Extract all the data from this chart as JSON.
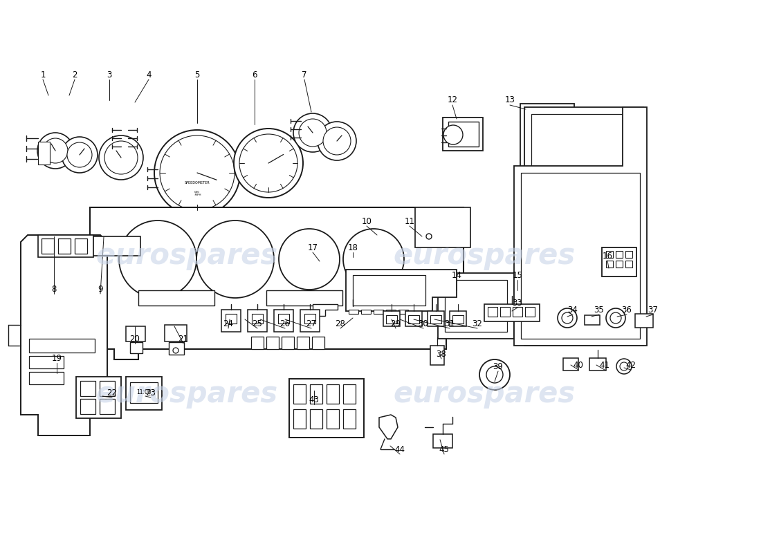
{
  "bg_color": "#ffffff",
  "line_color": "#1a1a1a",
  "watermark_color": "#c8d4e8",
  "watermark_text": "eurospares",
  "figsize": [
    11.0,
    8.0
  ],
  "dpi": 100
}
